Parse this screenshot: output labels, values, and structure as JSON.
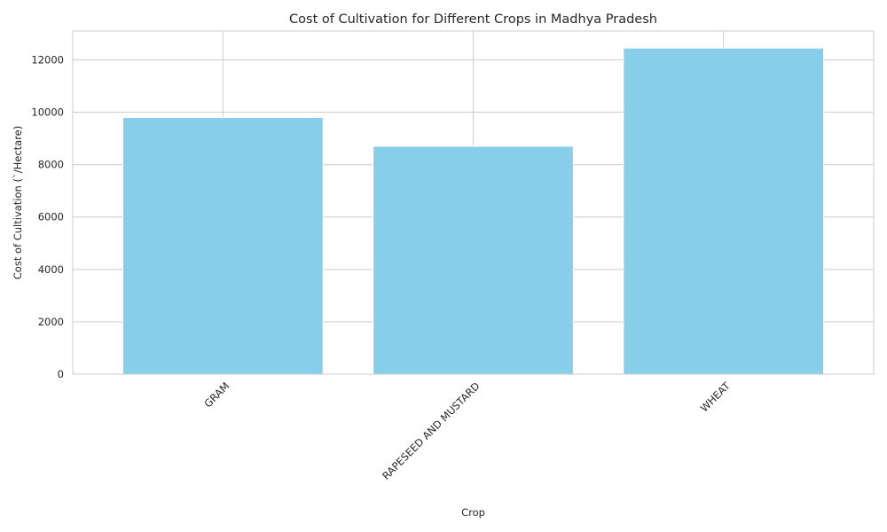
{
  "chart_data": {
    "type": "bar",
    "title": "Cost of Cultivation for Different Crops in Madhya Pradesh",
    "xlabel": "Crop",
    "ylabel": "Cost of Cultivation (`/Hectare)",
    "categories": [
      "GRAM",
      "RAPESEED AND MUSTARD",
      "WHEAT"
    ],
    "values": [
      9800,
      8700,
      12450
    ],
    "ylim": [
      0,
      13100
    ],
    "yticks": [
      0,
      2000,
      4000,
      6000,
      8000,
      10000,
      12000
    ],
    "x_tick_rotation_deg": 45,
    "grid": true,
    "legend": "none",
    "bar_color": "#87ceeb",
    "grid_color": "#cccccc"
  }
}
